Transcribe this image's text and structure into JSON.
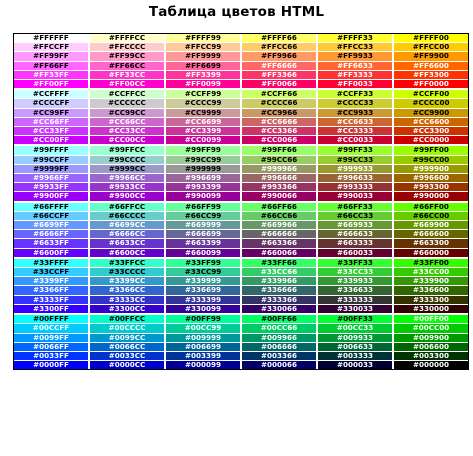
{
  "title": "Таблица цветов HTML",
  "color_table": {
    "rows": [
      [
        "#FFFFFF",
        "#FFFFCC",
        "#FFFF99",
        "#FFFF66",
        "#FFFF33",
        "#FFFF00"
      ],
      [
        "#FFCCFF",
        "#FFCCCC",
        "#FFCC99",
        "#FFCC66",
        "#FFCC33",
        "#FFCC00"
      ],
      [
        "#FF99FF",
        "#FF99CC",
        "#FF9999",
        "#FF9966",
        "#FF9933",
        "#FF9900"
      ],
      [
        "#FF66FF",
        "#FF66CC",
        "#FF6699",
        "#FF6666",
        "#FF6633",
        "#FF6600"
      ],
      [
        "#FF33FF",
        "#FF33CC",
        "#FF3399",
        "#FF3366",
        "#FF3333",
        "#FF3300"
      ],
      [
        "#FF00FF",
        "#FF00CC",
        "#FF0099",
        "#FF0066",
        "#FF0033",
        "#FF0000"
      ],
      [
        "#CCFFFF",
        "#CCFFCC",
        "#CCFF99",
        "#CCFF66",
        "#CCFF33",
        "#CCFF00"
      ],
      [
        "#CCCCFF",
        "#CCCCCC",
        "#CCCC99",
        "#CCCC66",
        "#CCCC33",
        "#CCCC00"
      ],
      [
        "#CC99FF",
        "#CC99CC",
        "#CC9999",
        "#CC9966",
        "#CC9933",
        "#CC9900"
      ],
      [
        "#CC66FF",
        "#CC66CC",
        "#CC6699",
        "#CC6666",
        "#CC6633",
        "#CC6600"
      ],
      [
        "#CC33FF",
        "#CC33CC",
        "#CC3399",
        "#CC3366",
        "#CC3333",
        "#CC3300"
      ],
      [
        "#CC00FF",
        "#CC00CC",
        "#CC0099",
        "#CC0066",
        "#CC0033",
        "#CC0000"
      ],
      [
        "#99FFFF",
        "#99FFCC",
        "#99FF99",
        "#99FF66",
        "#99FF33",
        "#99FF00"
      ],
      [
        "#99CCFF",
        "#99CCCC",
        "#99CC99",
        "#99CC66",
        "#99CC33",
        "#99CC00"
      ],
      [
        "#9999FF",
        "#9999CC",
        "#999999",
        "#999966",
        "#999933",
        "#999900"
      ],
      [
        "#9966FF",
        "#9966CC",
        "#996699",
        "#996666",
        "#996633",
        "#996600"
      ],
      [
        "#9933FF",
        "#9933CC",
        "#993399",
        "#993366",
        "#993333",
        "#993300"
      ],
      [
        "#9900FF",
        "#9900CC",
        "#990099",
        "#990066",
        "#990033",
        "#990000"
      ],
      [
        "#66FFFF",
        "#66FFCC",
        "#66FF99",
        "#66FF66",
        "#66FF33",
        "#66FF00"
      ],
      [
        "#66CCFF",
        "#66CCCC",
        "#66CC99",
        "#66CC66",
        "#66CC33",
        "#66CC00"
      ],
      [
        "#6699FF",
        "#6699CC",
        "#669999",
        "#669966",
        "#669933",
        "#669900"
      ],
      [
        "#6666FF",
        "#6666CC",
        "#666699",
        "#666666",
        "#666633",
        "#666600"
      ],
      [
        "#6633FF",
        "#6633CC",
        "#663399",
        "#663366",
        "#663333",
        "#663300"
      ],
      [
        "#6600FF",
        "#6600CC",
        "#660099",
        "#660066",
        "#660033",
        "#660000"
      ],
      [
        "#33FFFF",
        "#33FFCC",
        "#33FF99",
        "#33FF66",
        "#33FF33",
        "#33FF00"
      ],
      [
        "#33CCFF",
        "#33CCCC",
        "#33CC99",
        "#33CC66",
        "#33CC33",
        "#33CC00"
      ],
      [
        "#3399FF",
        "#3399CC",
        "#339999",
        "#339966",
        "#339933",
        "#339900"
      ],
      [
        "#3366FF",
        "#3366CC",
        "#336699",
        "#336666",
        "#336633",
        "#336600"
      ],
      [
        "#3333FF",
        "#3333CC",
        "#333399",
        "#333366",
        "#333333",
        "#333300"
      ],
      [
        "#3300FF",
        "#3300CC",
        "#330099",
        "#330066",
        "#330033",
        "#330000"
      ],
      [
        "#00FFFF",
        "#00FFCC",
        "#00FF99",
        "#00FF66",
        "#00FF33",
        "#00FF00"
      ],
      [
        "#00CCFF",
        "#00CCCC",
        "#00CC99",
        "#00CC66",
        "#00CC33",
        "#00CC00"
      ],
      [
        "#0099FF",
        "#0099CC",
        "#009999",
        "#009966",
        "#009933",
        "#009900"
      ],
      [
        "#0066FF",
        "#0066CC",
        "#006699",
        "#006666",
        "#006633",
        "#006600"
      ],
      [
        "#0033FF",
        "#0033CC",
        "#003399",
        "#003366",
        "#003333",
        "#003300"
      ],
      [
        "#0000FF",
        "#0000CC",
        "#000099",
        "#000066",
        "#000033",
        "#000000"
      ]
    ]
  }
}
